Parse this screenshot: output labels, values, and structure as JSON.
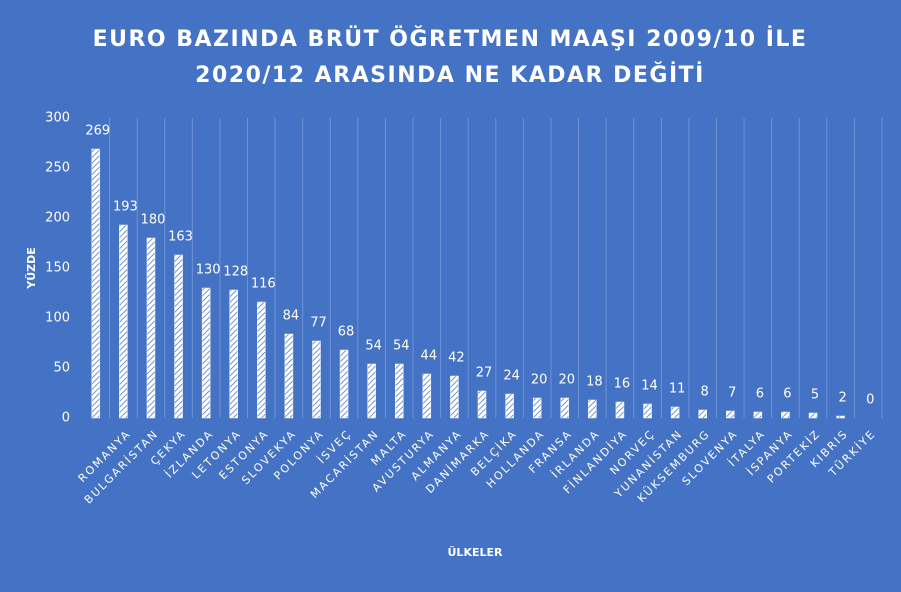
{
  "chart_data": {
    "type": "bar",
    "title": [
      "EURO BAZINDA BRÜT ÖĞRETMEN MAAŞI 2009/10 İLE",
      "2020/12 ARASINDA NE KADAR DEĞİTİ"
    ],
    "x_label": "ÜLKELER",
    "y_label": "YÜZDE",
    "categories": [
      null,
      "ROMANYA",
      "BULGARİSTAN",
      "ÇEKYA",
      "İZLANDA",
      "LETONYA",
      "ESTONYA",
      "SLOVEKYA",
      "POLONYA",
      "İSVEÇ",
      "MACARİSTAN",
      "MALTA",
      "AVUSTURYA",
      "ALMANYA",
      "DANİMARKA",
      "BELÇİKA",
      "HOLLANDA",
      "FRANSA",
      "İRLANDA",
      "FİNLANDİYA",
      "NORVEÇ",
      "YUNANİSTAN",
      "KÜKSEMBURG",
      "SLOVENYA",
      "İTALYA",
      "İSPANYA",
      "PORTEKİZ",
      "KIBRIS",
      "TÜRKİYE"
    ],
    "values": [
      269,
      193,
      180,
      163,
      130,
      128,
      116,
      84,
      77,
      68,
      54,
      54,
      44,
      42,
      27,
      24,
      20,
      20,
      18,
      16,
      14,
      11,
      8,
      7,
      6,
      6,
      5,
      2,
      0
    ],
    "color": "#ffffff",
    "ylim": [
      0,
      300
    ],
    "yticks": [
      0,
      50,
      100,
      150,
      200,
      250,
      300
    ],
    "grid": true
  }
}
